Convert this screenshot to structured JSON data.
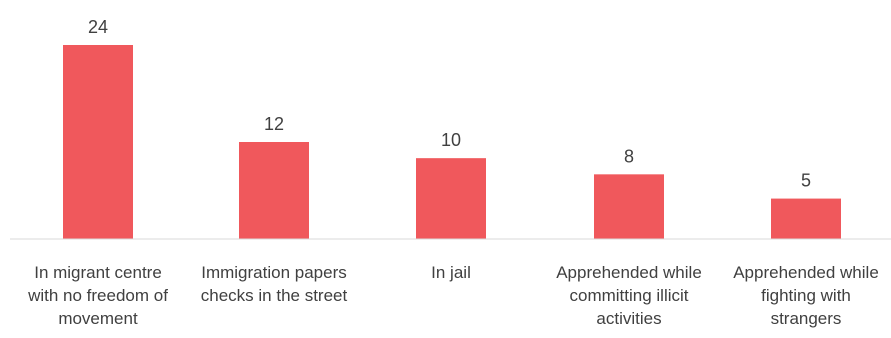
{
  "chart_data": {
    "type": "bar",
    "categories": [
      "In migrant centre with no freedom of movement",
      "Immigration papers checks in the street",
      "In jail",
      "Apprehended while committing illicit activities",
      "Apprehended while fighting with strangers"
    ],
    "category_lines": [
      [
        "In migrant centre",
        "with no freedom of",
        "movement"
      ],
      [
        "Immigration papers",
        "checks in the street"
      ],
      [
        "In jail"
      ],
      [
        "Apprehended while",
        "committing illicit",
        "activities"
      ],
      [
        "Apprehended while",
        "fighting with",
        "strangers"
      ]
    ],
    "values": [
      24,
      12,
      10,
      8,
      5
    ],
    "data_labels": [
      "24",
      "12",
      "10",
      "8",
      "5"
    ],
    "ylim": [
      0,
      24
    ],
    "grid": false,
    "legend": "none",
    "bar_color": "#F0585C",
    "axis_color": "#D9D9D9",
    "text_color": "#404040"
  }
}
